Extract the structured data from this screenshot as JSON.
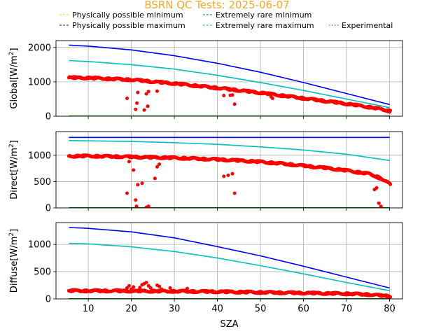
{
  "title": "BSRN QC Tests: 2025-06-07",
  "colors": {
    "title": "#f5a623",
    "phys_min": "#ffd000",
    "phys_max": "#0000ee",
    "rare_min": "#008000",
    "rare_max": "#00bfbf",
    "experimental": "#ff0000",
    "grid": "#b0b0b0"
  },
  "legend": [
    {
      "key": "phys_min",
      "label": "Physically possible minimum",
      "style": "dashed"
    },
    {
      "key": "rare_min",
      "label": "Extremely rare minimum",
      "style": "dashed"
    },
    {
      "key": "phys_max",
      "label": "Physically possible maximum",
      "style": "dashed"
    },
    {
      "key": "rare_max",
      "label": "Extremely rare maximum",
      "style": "dashed"
    },
    {
      "key": "experimental",
      "label": "Experimental",
      "style": "dotted"
    }
  ],
  "chart_data": [
    {
      "type": "line",
      "title": "BSRN QC Tests: 2025-06-07",
      "ylabel_base": "Global[W/m",
      "ylabel_sup": "2",
      "ylabel_end": "]",
      "xlabel": "",
      "xlim": [
        2.5,
        83
      ],
      "ylim": [
        0,
        2200
      ],
      "yticks": [
        0,
        1000,
        2000
      ],
      "xticks": [
        10,
        20,
        30,
        40,
        50,
        60,
        70,
        80
      ],
      "show_xticklabels": false,
      "grid": true,
      "series": [
        {
          "name": "Physically possible maximum",
          "color_key": "phys_max",
          "x": [
            5.5,
            10,
            20,
            30,
            40,
            50,
            60,
            70,
            80
          ],
          "y": [
            2070,
            2040,
            1930,
            1760,
            1540,
            1280,
            980,
            660,
            340
          ]
        },
        {
          "name": "Extremely rare maximum",
          "color_key": "rare_max",
          "x": [
            5.5,
            10,
            20,
            30,
            40,
            50,
            60,
            70,
            80
          ],
          "y": [
            1620,
            1590,
            1500,
            1370,
            1190,
            980,
            750,
            500,
            250
          ]
        },
        {
          "name": "Physically possible minimum",
          "color_key": "phys_min",
          "x": [
            5.5,
            80
          ],
          "y": [
            0,
            0
          ]
        },
        {
          "name": "Extremely rare minimum",
          "color_key": "rare_min",
          "x": [
            5.5,
            80
          ],
          "y": [
            4,
            4
          ]
        }
      ],
      "experimental": {
        "trend": {
          "x": [
            5.5,
            10,
            20,
            30,
            40,
            50,
            60,
            70,
            76,
            80
          ],
          "y": [
            1120,
            1115,
            1060,
            950,
            820,
            680,
            520,
            360,
            250,
            150
          ]
        },
        "outliers": {
          "x": [
            19,
            21,
            21.3,
            21.5,
            23,
            23.5,
            23.8,
            24,
            26,
            41.5,
            43,
            43.5,
            44,
            52.5,
            52.8
          ],
          "y": [
            520,
            200,
            380,
            690,
            180,
            650,
            290,
            720,
            730,
            600,
            610,
            620,
            350,
            560,
            520
          ]
        }
      }
    },
    {
      "type": "line",
      "ylabel_base": "Direct[W/m",
      "ylabel_sup": "2",
      "ylabel_end": "]",
      "xlabel": "",
      "xlim": [
        2.5,
        83
      ],
      "ylim": [
        0,
        1450
      ],
      "yticks": [
        0,
        500,
        1000
      ],
      "xticks": [
        10,
        20,
        30,
        40,
        50,
        60,
        70,
        80
      ],
      "show_xticklabels": false,
      "grid": true,
      "series": [
        {
          "name": "Physically possible maximum",
          "color_key": "phys_max",
          "x": [
            5.5,
            80
          ],
          "y": [
            1340,
            1340
          ]
        },
        {
          "name": "Extremely rare maximum",
          "color_key": "rare_max",
          "x": [
            5.5,
            10,
            20,
            30,
            40,
            50,
            60,
            70,
            80
          ],
          "y": [
            1280,
            1275,
            1262,
            1240,
            1208,
            1160,
            1100,
            1020,
            900
          ]
        },
        {
          "name": "Physically possible minimum",
          "color_key": "phys_min",
          "x": [
            5.5,
            80
          ],
          "y": [
            0,
            0
          ]
        },
        {
          "name": "Extremely rare minimum",
          "color_key": "rare_min",
          "x": [
            5.5,
            80
          ],
          "y": [
            2,
            2
          ]
        }
      ],
      "experimental": {
        "trend": {
          "x": [
            5.5,
            10,
            20,
            30,
            40,
            45,
            50,
            55,
            60,
            65,
            70,
            75,
            78,
            80
          ],
          "y": [
            985,
            985,
            970,
            950,
            920,
            900,
            875,
            840,
            800,
            760,
            710,
            650,
            560,
            450
          ]
        },
        "outliers": {
          "x": [
            19,
            19.5,
            20.5,
            21,
            21.2,
            21.5,
            22.5,
            23.5,
            24,
            25.5,
            26,
            26.5,
            41.5,
            42.5,
            43.5,
            44,
            76.5,
            77,
            77.5,
            78
          ],
          "y": [
            280,
            880,
            720,
            150,
            30,
            440,
            470,
            10,
            30,
            560,
            780,
            830,
            600,
            620,
            650,
            280,
            350,
            380,
            90,
            30
          ]
        }
      }
    },
    {
      "type": "line",
      "ylabel_base": "Diffuse[W/m",
      "ylabel_sup": "2",
      "ylabel_end": "]",
      "xlabel": "SZA",
      "xlim": [
        2.5,
        83
      ],
      "ylim": [
        0,
        1400
      ],
      "yticks": [
        0,
        500,
        1000
      ],
      "xticks": [
        10,
        20,
        30,
        40,
        50,
        60,
        70,
        80
      ],
      "show_xticklabels": true,
      "grid": true,
      "series": [
        {
          "name": "Physically possible maximum",
          "color_key": "phys_max",
          "x": [
            5.5,
            10,
            20,
            30,
            40,
            50,
            60,
            70,
            80
          ],
          "y": [
            1310,
            1295,
            1230,
            1120,
            960,
            790,
            600,
            400,
            200
          ]
        },
        {
          "name": "Extremely rare maximum",
          "color_key": "rare_max",
          "x": [
            5.5,
            10,
            20,
            30,
            40,
            50,
            60,
            70,
            80
          ],
          "y": [
            1020,
            1010,
            955,
            870,
            750,
            610,
            460,
            300,
            150
          ]
        },
        {
          "name": "Physically possible minimum",
          "color_key": "phys_min",
          "x": [
            5.5,
            80
          ],
          "y": [
            0,
            0
          ]
        },
        {
          "name": "Extremely rare minimum",
          "color_key": "rare_min",
          "x": [
            5.5,
            80
          ],
          "y": [
            2,
            2
          ]
        }
      ],
      "experimental": {
        "trend": {
          "x": [
            5.5,
            10,
            20,
            30,
            40,
            50,
            60,
            70,
            75,
            80
          ],
          "y": [
            150,
            148,
            145,
            140,
            132,
            120,
            108,
            95,
            80,
            50
          ]
        },
        "outliers": {
          "x": [
            19,
            19.5,
            20,
            20.5,
            22,
            22.5,
            23,
            23.5,
            24,
            24.5,
            26,
            26.5,
            27,
            29,
            33
          ],
          "y": [
            200,
            240,
            180,
            220,
            210,
            260,
            280,
            300,
            240,
            200,
            250,
            230,
            180,
            200,
            190
          ]
        }
      }
    }
  ]
}
